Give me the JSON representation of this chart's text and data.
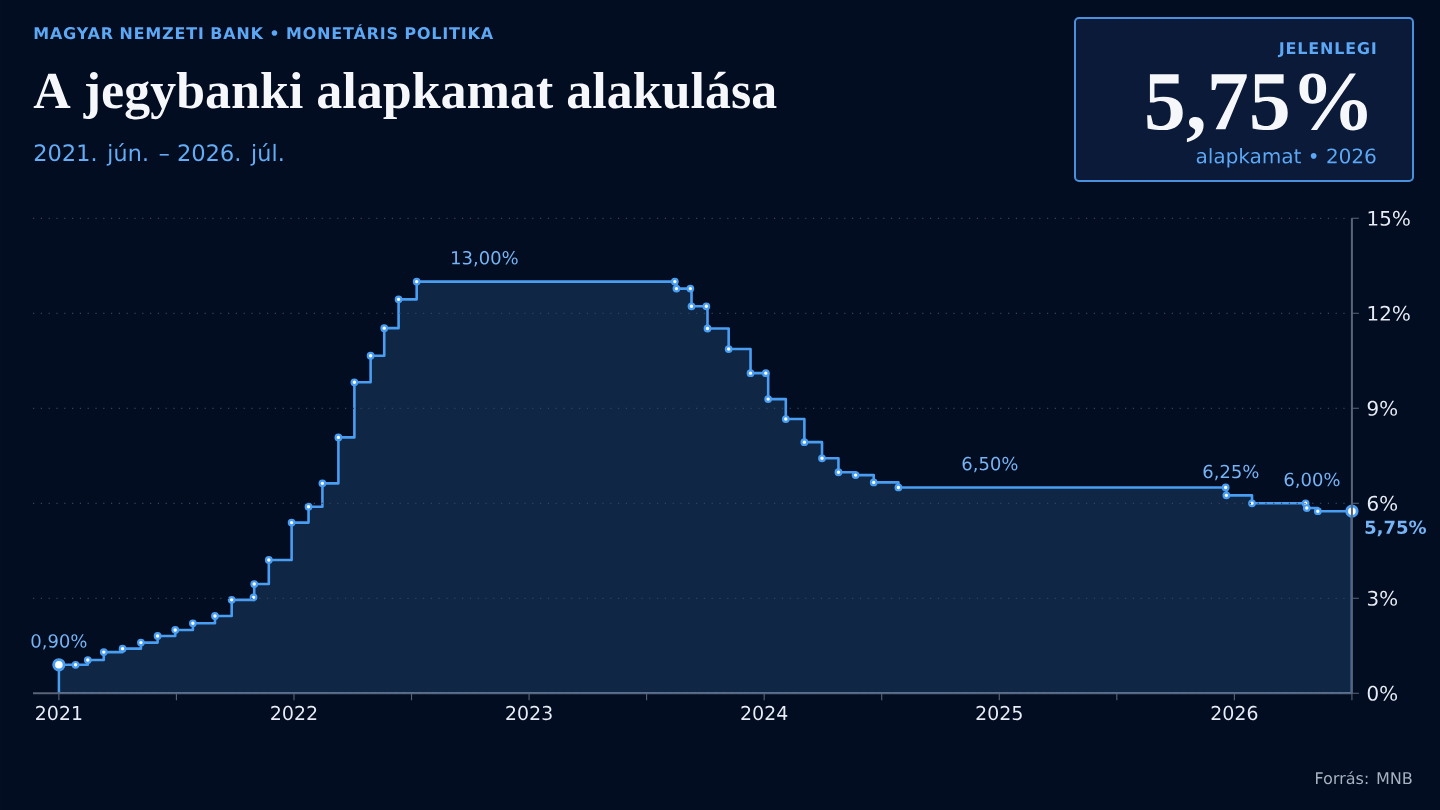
{
  "chart_data": {
    "type": "area",
    "title": "A jegybanki alapkamat alakulása",
    "subtitle": "2021. jún. – 2026. júl.",
    "annotations": [
      "MAGYAR NEMZETI BANK • MONETÁRIS POLITIKA",
      "JELENLEGI",
      "5,75%",
      "alapkamat • 2026",
      "Forrás: MNB",
      {
        "text": "0,90%",
        "x": 2021.0,
        "y": 0.9
      },
      {
        "text": "13,00%",
        "x": 2022.81,
        "y": 13.0
      },
      {
        "text": "6,50%",
        "x": 2024.96,
        "y": 6.5
      },
      {
        "text": "6,25%",
        "x": 2025.985,
        "y": 6.25
      },
      {
        "text": "6,00%",
        "x": 2026.33,
        "y": 6.0
      },
      {
        "text": "5,75%",
        "x": 2026.5,
        "y": 5.75
      }
    ],
    "x": [
      2021.0,
      2021.071,
      2021.123,
      2021.191,
      2021.271,
      2021.349,
      2021.42,
      2021.495,
      2021.57,
      2021.664,
      2021.735,
      2021.828,
      2021.831,
      2021.893,
      2021.99,
      2022.062,
      2022.121,
      2022.189,
      2022.257,
      2022.326,
      2022.384,
      2022.445,
      2022.522,
      2023.62,
      2023.627,
      2023.686,
      2023.691,
      2023.754,
      2023.759,
      2023.849,
      2023.942,
      2024.007,
      2024.017,
      2024.092,
      2024.171,
      2024.246,
      2024.316,
      2024.389,
      2024.466,
      2024.571,
      2025.963,
      2025.966,
      2026.075,
      2026.303,
      2026.308,
      2026.355,
      2026.5
    ],
    "values": [
      0.9,
      0.9,
      1.05,
      1.3,
      1.41,
      1.6,
      1.81,
      2.0,
      2.21,
      2.44,
      2.95,
      3.03,
      3.45,
      4.21,
      5.39,
      5.89,
      6.63,
      8.08,
      9.82,
      10.66,
      11.53,
      12.44,
      13.0,
      13.0,
      12.78,
      12.78,
      12.22,
      12.22,
      11.52,
      10.87,
      10.11,
      10.11,
      9.29,
      8.66,
      7.93,
      7.42,
      6.98,
      6.89,
      6.66,
      6.5,
      6.5,
      6.25,
      6.0,
      6.0,
      5.85,
      5.75,
      5.75
    ],
    "color": "#4a9ef2",
    "xlim": [
      2020.89,
      2026.5
    ],
    "xticks": [
      2021,
      {
        "value": 2021.5,
        "label": null
      },
      2022,
      {
        "value": 2022.5,
        "label": null
      },
      2023,
      {
        "value": 2023.5,
        "label": null
      },
      2024,
      {
        "value": 2024.5,
        "label": null
      },
      2025,
      {
        "value": 2025.5,
        "label": null
      },
      2026,
      {
        "value": 2026.5,
        "label": null
      }
    ],
    "ylim": [
      0,
      15
    ],
    "yticks": [
      {
        "value": 0,
        "label": "0%"
      },
      {
        "value": 3,
        "label": "3%"
      },
      {
        "value": 6,
        "label": "6%"
      },
      {
        "value": 9,
        "label": "9%"
      },
      {
        "value": 12,
        "label": "12%"
      },
      {
        "value": 15,
        "label": "15%"
      }
    ],
    "grid": "y",
    "marker": "circle",
    "line_style": "solid"
  }
}
